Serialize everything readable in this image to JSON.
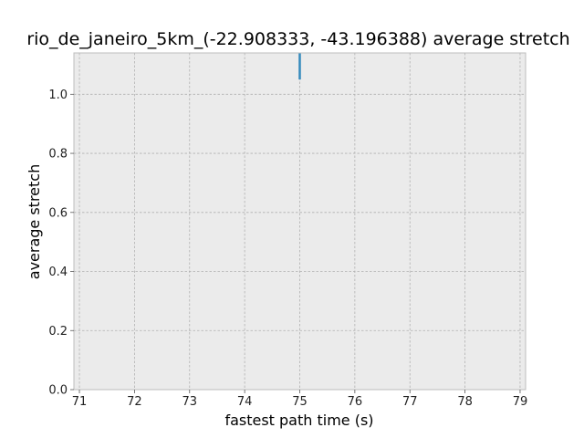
{
  "chart_data": {
    "type": "line",
    "title": "rio_de_janeiro_5km_(-22.908333, -43.196388) average stretch",
    "xlabel": "fastest path time (s)",
    "ylabel": "average stretch",
    "xlim": [
      70.9,
      79.1
    ],
    "ylim": [
      0.0,
      1.14
    ],
    "xticks": [
      "71",
      "72",
      "73",
      "74",
      "75",
      "76",
      "77",
      "78",
      "79"
    ],
    "yticks": [
      "0.0",
      "0.2",
      "0.4",
      "0.6",
      "0.8",
      "1.0"
    ],
    "grid": true,
    "series": [
      {
        "x": [
          75,
          75
        ],
        "y": [
          1.05,
          1.14
        ]
      }
    ],
    "colors": {
      "plot_background": "#ebebeb",
      "series": "#348abd",
      "grid": "#b0b0b0",
      "spine": "#bcbcbc"
    }
  }
}
